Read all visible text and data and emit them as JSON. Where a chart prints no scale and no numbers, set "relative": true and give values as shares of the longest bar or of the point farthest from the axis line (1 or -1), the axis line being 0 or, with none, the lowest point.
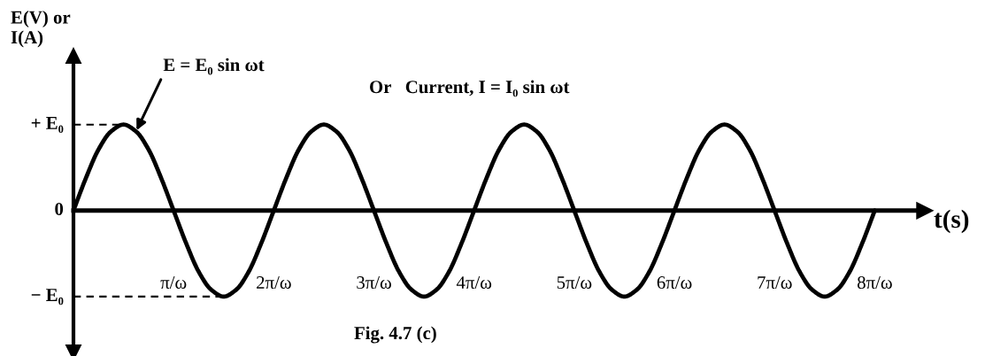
{
  "chart_data": {
    "type": "line",
    "relative": true,
    "xlabel": "t(s)",
    "ylabel": "E(V) or\nI(A)",
    "annotations": [
      {
        "text": "E = E₀ sin ωt",
        "x": 0.625,
        "y": 0.92
      },
      {
        "text": "0",
        "x": 0,
        "y": 0
      },
      "Or   Current, I = I₀ sin ωt",
      "Fig. 4.7 (c)"
    ],
    "x": [
      0,
      0.125,
      0.25,
      0.375,
      0.5,
      0.625,
      0.75,
      0.875,
      1,
      1.125,
      1.25,
      1.375,
      1.5,
      1.625,
      1.75,
      1.875,
      2,
      2.125,
      2.25,
      2.375,
      2.5,
      2.625,
      2.75,
      2.875,
      3,
      3.125,
      3.25,
      3.375,
      3.5,
      3.625,
      3.75,
      3.875,
      4,
      4.125,
      4.25,
      4.375,
      4.5,
      4.625,
      4.75,
      4.875,
      5,
      5.125,
      5.25,
      5.375,
      5.5,
      5.625,
      5.75,
      5.875,
      6,
      6.125,
      6.25,
      6.375,
      6.5,
      6.625,
      6.75,
      6.875,
      7,
      7.125,
      7.25,
      7.375,
      7.5,
      7.625,
      7.75,
      7.875,
      8
    ],
    "series": [
      {
        "color": "#000000",
        "values": [
          0,
          0.38,
          0.71,
          0.92,
          1,
          0.92,
          0.71,
          0.38,
          0,
          -0.38,
          -0.71,
          -0.92,
          -1,
          -0.92,
          -0.71,
          -0.38,
          0,
          0.38,
          0.71,
          0.92,
          1,
          0.92,
          0.71,
          0.38,
          0,
          -0.38,
          -0.71,
          -0.92,
          -1,
          -0.92,
          -0.71,
          -0.38,
          0,
          0.38,
          0.71,
          0.92,
          1,
          0.92,
          0.71,
          0.38,
          0,
          -0.38,
          -0.71,
          -0.92,
          -1,
          -0.92,
          -0.71,
          -0.38,
          0,
          0.38,
          0.71,
          0.92,
          1,
          0.92,
          0.71,
          0.38,
          0,
          -0.38,
          -0.71,
          -0.92,
          -1,
          -0.92,
          -0.71,
          -0.38,
          0
        ]
      }
    ],
    "xlim": [
      0,
      8.5
    ],
    "xticks": [
      {
        "value": 1,
        "label": "π/ω"
      },
      {
        "value": 2,
        "label": "2π/ω"
      },
      {
        "value": 3,
        "label": "3π/ω"
      },
      {
        "value": 4,
        "label": "4π/ω"
      },
      {
        "value": 5,
        "label": "5π/ω"
      },
      {
        "value": 6,
        "label": "6π/ω"
      },
      {
        "value": 7,
        "label": "7π/ω"
      },
      {
        "value": 8,
        "label": "8π/ω"
      }
    ],
    "ref_lines": [
      {
        "axis": "y",
        "value": 1,
        "label": "+ E₀",
        "line_style": "dashed",
        "color": "#000000"
      },
      {
        "axis": "y",
        "value": -1,
        "label": "− E₀",
        "line_style": "dashed",
        "color": "#000000"
      }
    ],
    "line_style": "solid"
  }
}
